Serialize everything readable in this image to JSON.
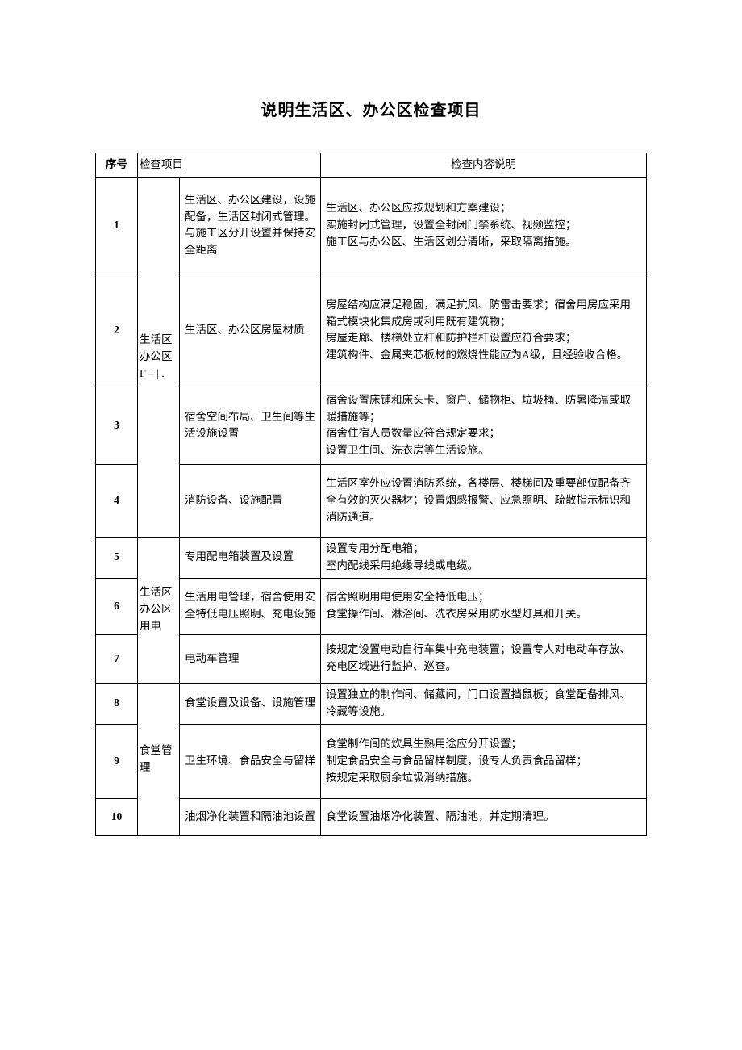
{
  "title": "说明生活区、办公区检查项目",
  "header": {
    "seq": "序号",
    "item": "检查项目",
    "desc": "检查内容说明"
  },
  "groups": [
    {
      "category": "生活区办公区 Γ – | .",
      "rows": [
        {
          "seq": "1",
          "item": "生活区、办公区建设，设施配备，生活区封闭式管理。与施工区分开设置并保持安全距离",
          "desc": "生活区、办公区应按规划和方案建设；\n实施封闭式管理，设置全封闭门禁系统、视频监控；\n施工区与办公区、生活区划分清晰，采取隔离措施。"
        },
        {
          "seq": "2",
          "item": "生活区、办公区房屋材质",
          "desc": "房屋结构应满足稳固，满足抗风、防雷击要求；宿舍用房应采用箱式模块化集成房或利用既有建筑物；\n房屋走廊、楼梯处立杆和防护栏杆设置应符合要求；\n建筑构件、金属夹芯板材的燃烧性能应为A级，且经验收合格。"
        },
        {
          "seq": "3",
          "item": "宿舍空间布局、卫生间等生活设施设置",
          "desc": "宿舍设置床铺和床头卡、窗户、储物柜、垃圾桶、防暑降温或取暖措施等；\n宿舍住宿人员数量应符合规定要求；\n设置卫生间、洗衣房等生活设施。"
        },
        {
          "seq": "4",
          "item": "消防设备、设施配置",
          "desc": "生活区室外应设置消防系统，各楼层、楼梯间及重要部位配备齐全有效的灭火器材；设置烟感报警、应急照明、疏散指示标识和消防通道。"
        }
      ]
    },
    {
      "category": "生活区办公区用电",
      "rows": [
        {
          "seq": "5",
          "item": "专用配电箱装置及设置",
          "desc": "设置专用分配电箱；\n室内配线采用绝缘导线或电缆。"
        },
        {
          "seq": "6",
          "item": "生活用电管理，宿舍使用安全特低电压照明、充电设施",
          "desc": "宿舍照明用电使用安全特低电压；\n食堂操作间、淋浴间、洗衣房采用防水型灯具和开关。"
        },
        {
          "seq": "7",
          "item": "电动车管理",
          "desc": "按规定设置电动自行车集中充电装置；设置专人对电动车存放、充电区域进行监护、巡查。"
        }
      ]
    },
    {
      "category": "食堂管理",
      "rows": [
        {
          "seq": "8",
          "item": "食堂设置及设备、设施管理",
          "desc": "设置独立的制作间、储藏间，门口设置挡鼠板；食堂配备排风、冷藏等设施。"
        },
        {
          "seq": "9",
          "item": "卫生环境、食品安全与留样",
          "desc": "食堂制作间的炊具生熟用途应分开设置；\n制定食品安全与食品留样制度，设专人负责食品留样；\n按规定采取厨余垃圾消纳措施。"
        },
        {
          "seq": "10",
          "item": "油烟净化装置和隔油池设置",
          "desc": "食堂设置油烟净化装置、隔油池，并定期清理。"
        }
      ]
    }
  ]
}
